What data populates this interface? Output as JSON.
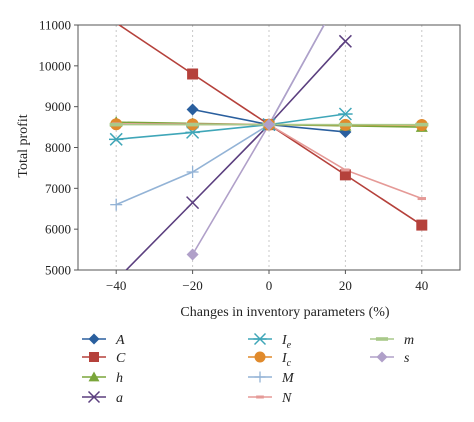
{
  "chart_data": {
    "type": "line",
    "xlabel": "Changes in inventory parameters (%)",
    "ylabel": "Total profit",
    "xlim": [
      -50,
      50
    ],
    "ylim": [
      5000,
      11000
    ],
    "xticks": [
      -40,
      -20,
      0,
      20,
      40
    ],
    "xtick_labels": [
      "−40",
      "−20",
      "0",
      "20",
      "40"
    ],
    "yticks": [
      5000,
      6000,
      7000,
      8000,
      9000,
      10000,
      11000
    ],
    "ytick_labels": [
      "5000",
      "6000",
      "7000",
      "8000",
      "9000",
      "10000",
      "11000"
    ],
    "grid": "vertical-dashed",
    "legend_position": "bottom",
    "series": [
      {
        "name": "A",
        "sub": "",
        "color": "#2a5f9e",
        "marker": "diamond",
        "x": [
          -20,
          0,
          20
        ],
        "y": [
          8930,
          8560,
          8380
        ]
      },
      {
        "name": "C",
        "sub": "",
        "color": "#b5413b",
        "marker": "square",
        "x": [
          -40,
          -20,
          0,
          20,
          40
        ],
        "y": [
          11050,
          9800,
          8560,
          7330,
          6100
        ]
      },
      {
        "name": "h",
        "sub": "",
        "color": "#7aa53a",
        "marker": "triangle",
        "x": [
          -40,
          -20,
          0,
          20,
          40
        ],
        "y": [
          8620,
          8590,
          8560,
          8530,
          8500
        ]
      },
      {
        "name": "a",
        "sub": "",
        "color": "#5b3f7f",
        "marker": "x",
        "x": [
          -40,
          -20,
          0,
          20
        ],
        "y": [
          4750,
          6650,
          8560,
          10600
        ]
      },
      {
        "name": "I",
        "sub": "e",
        "color": "#3fa6b8",
        "marker": "asterisk",
        "x": [
          -40,
          -20,
          0,
          20
        ],
        "y": [
          8200,
          8370,
          8560,
          8820
        ]
      },
      {
        "name": "I",
        "sub": "c",
        "color": "#e08a2c",
        "marker": "circle",
        "x": [
          -40,
          -20,
          0,
          20,
          40
        ],
        "y": [
          8570,
          8565,
          8560,
          8555,
          8550
        ]
      },
      {
        "name": "M",
        "sub": "",
        "color": "#93b3d6",
        "marker": "plus",
        "x": [
          -40,
          -20,
          0,
          15
        ],
        "y": [
          6600,
          7400,
          8560,
          11100
        ]
      },
      {
        "name": "N",
        "sub": "",
        "color": "#e59a97",
        "marker": "dash",
        "x": [
          -40,
          -20,
          0,
          20,
          40
        ],
        "y": [
          8580,
          8570,
          8560,
          7450,
          6750
        ]
      },
      {
        "name": "m",
        "sub": "",
        "color": "#a9c98a",
        "marker": "bar",
        "x": [
          -40,
          -20,
          0,
          20,
          40
        ],
        "y": [
          8560,
          8560,
          8560,
          8560,
          8560
        ]
      },
      {
        "name": "s",
        "sub": "",
        "color": "#b0a0c9",
        "marker": "diamond",
        "x": [
          -20,
          0,
          15
        ],
        "y": [
          5380,
          8560,
          11100
        ]
      }
    ]
  }
}
